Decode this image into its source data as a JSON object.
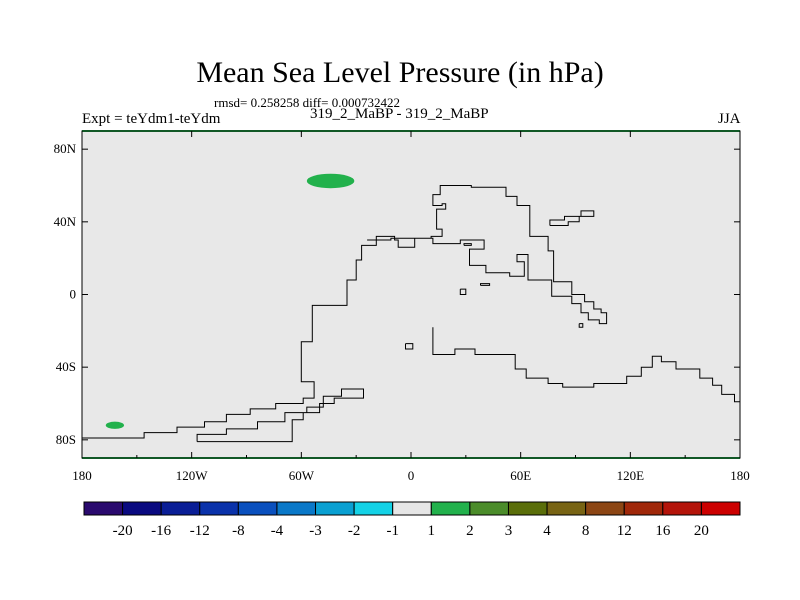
{
  "chart_data": {
    "type": "heatmap",
    "title": "Mean Sea Level Pressure (in hPa)",
    "stats_text": "rmsd= 0.258258 diff= 0.000732422",
    "left_label": "Expt = teYdm1-teYdm",
    "center_label": "319_2_MaBP - 319_2_MaBP",
    "right_label": "JJA",
    "x_range": [
      -180,
      180
    ],
    "y_range": [
      -90,
      90
    ],
    "x_ticks": [
      {
        "value": -180,
        "label": "180"
      },
      {
        "value": -120,
        "label": "120W"
      },
      {
        "value": -60,
        "label": "60W"
      },
      {
        "value": 0,
        "label": "0"
      },
      {
        "value": 60,
        "label": "60E"
      },
      {
        "value": 120,
        "label": "120E"
      },
      {
        "value": 180,
        "label": "180"
      }
    ],
    "y_ticks": [
      {
        "value": 80,
        "label": "80N"
      },
      {
        "value": 40,
        "label": "40N"
      },
      {
        "value": 0,
        "label": "0"
      },
      {
        "value": -40,
        "label": "40S"
      },
      {
        "value": -80,
        "label": "80S"
      }
    ],
    "background_color": "#e8e8e8",
    "anomalies": [
      {
        "name": "north-atlantic-positive",
        "lon": -44,
        "lat": 62.5,
        "lon_half_width": 13,
        "lat_half_height": 4,
        "value_bin": "1 to 2",
        "color": "#22b14c"
      },
      {
        "name": "south-pacific-positive",
        "lon": -162,
        "lat": -72,
        "lon_half_width": 5,
        "lat_half_height": 2,
        "value_bin": "1 to 2",
        "color": "#22b14c"
      }
    ],
    "colorbar": {
      "labels": [
        "-20",
        "-16",
        "-12",
        "-8",
        "-4",
        "-3",
        "-2",
        "-1",
        "1",
        "2",
        "3",
        "4",
        "8",
        "12",
        "16",
        "20"
      ],
      "colors": [
        "#2a0a6e",
        "#0a0a80",
        "#0a1e96",
        "#0a32aa",
        "#0a50be",
        "#0a78c8",
        "#0aa0d2",
        "#14d2e6",
        "#e6e6e6",
        "#22b14c",
        "#4b8c2a",
        "#5a6e0a",
        "#786414",
        "#8c4614",
        "#a0280a",
        "#b4140a",
        "#cc0000"
      ]
    },
    "coastlines": [
      {
        "name": "continent-outline-west",
        "points": [
          [
            -180,
            -79
          ],
          [
            -146,
            -79
          ],
          [
            -146,
            -76
          ],
          [
            -128,
            -76
          ],
          [
            -128,
            -73
          ],
          [
            -113,
            -73
          ],
          [
            -113,
            -70
          ],
          [
            -101,
            -70
          ],
          [
            -101,
            -66
          ],
          [
            -88,
            -66
          ],
          [
            -88,
            -63
          ],
          [
            -74,
            -63
          ],
          [
            -74,
            -60
          ],
          [
            -59,
            -60
          ],
          [
            -59,
            -57
          ],
          [
            -53,
            -57
          ],
          [
            -53,
            -48
          ],
          [
            -60,
            -48
          ],
          [
            -60,
            -26
          ],
          [
            -54,
            -26
          ],
          [
            -54,
            -6
          ],
          [
            -35,
            -6
          ],
          [
            -35,
            8
          ],
          [
            -30,
            8
          ],
          [
            -30,
            19
          ],
          [
            -27,
            19
          ],
          [
            -27,
            27
          ],
          [
            -19,
            27
          ],
          [
            -19,
            32
          ],
          [
            -9,
            32
          ],
          [
            -9,
            30
          ],
          [
            -7,
            30
          ],
          [
            -7,
            26
          ],
          [
            2,
            26
          ],
          [
            2,
            31
          ],
          [
            12,
            31
          ],
          [
            12,
            28
          ],
          [
            27,
            28
          ],
          [
            27,
            30
          ],
          [
            40,
            30
          ],
          [
            40,
            25
          ],
          [
            32,
            25
          ],
          [
            32,
            16
          ],
          [
            41,
            16
          ],
          [
            41,
            12
          ],
          [
            54,
            12
          ],
          [
            54,
            10
          ],
          [
            62,
            10
          ],
          [
            62,
            18
          ],
          [
            58,
            18
          ],
          [
            58,
            22
          ],
          [
            64,
            22
          ],
          [
            64,
            8
          ],
          [
            77,
            8
          ],
          [
            77,
            -1
          ],
          [
            88,
            -1
          ],
          [
            88,
            -5
          ],
          [
            93,
            -5
          ],
          [
            93,
            -10
          ],
          [
            97,
            -10
          ],
          [
            97,
            -14
          ],
          [
            103,
            -14
          ],
          [
            103,
            -16
          ],
          [
            107,
            -16
          ],
          [
            107,
            -10
          ],
          [
            104,
            -10
          ],
          [
            104,
            -8
          ],
          [
            100,
            -8
          ],
          [
            100,
            -4
          ],
          [
            95,
            -4
          ],
          [
            95,
            0
          ],
          [
            88,
            0
          ],
          [
            88,
            7
          ],
          [
            78,
            7
          ],
          [
            78,
            24
          ],
          [
            75,
            24
          ],
          [
            75,
            32
          ],
          [
            65,
            32
          ],
          [
            65,
            49
          ],
          [
            58,
            49
          ],
          [
            58,
            54
          ],
          [
            52,
            54
          ],
          [
            52,
            59
          ],
          [
            33,
            59
          ],
          [
            33,
            60
          ],
          [
            16,
            60
          ],
          [
            16,
            55
          ],
          [
            12,
            55
          ],
          [
            12,
            49
          ],
          [
            17,
            49
          ],
          [
            17,
            50
          ],
          [
            19,
            50
          ],
          [
            19,
            47
          ],
          [
            14,
            47
          ],
          [
            14,
            36
          ],
          [
            17,
            36
          ],
          [
            17,
            32
          ],
          [
            11,
            32
          ],
          [
            11,
            31
          ],
          [
            -11,
            31
          ],
          [
            -11,
            30
          ],
          [
            -24,
            30
          ]
        ]
      },
      {
        "name": "continent-outline-south",
        "points": [
          [
            12,
            -18
          ],
          [
            12,
            -33
          ],
          [
            24,
            -33
          ],
          [
            24,
            -30
          ],
          [
            35,
            -30
          ],
          [
            35,
            -33
          ],
          [
            57,
            -33
          ],
          [
            57,
            -41
          ],
          [
            63,
            -41
          ],
          [
            63,
            -46
          ],
          [
            75,
            -46
          ],
          [
            75,
            -49
          ],
          [
            83,
            -49
          ],
          [
            83,
            -51
          ],
          [
            100,
            -51
          ],
          [
            100,
            -49
          ],
          [
            118,
            -49
          ],
          [
            118,
            -45
          ],
          [
            126,
            -45
          ],
          [
            126,
            -40
          ],
          [
            132,
            -40
          ],
          [
            132,
            -34
          ],
          [
            137,
            -34
          ],
          [
            137,
            -37
          ],
          [
            145,
            -37
          ],
          [
            145,
            -41
          ],
          [
            158,
            -41
          ],
          [
            158,
            -46
          ],
          [
            165,
            -46
          ],
          [
            165,
            -50
          ],
          [
            170,
            -50
          ],
          [
            170,
            -55
          ],
          [
            177,
            -55
          ],
          [
            177,
            -59
          ],
          [
            180,
            -59
          ]
        ]
      },
      {
        "name": "peninsula-outline",
        "points": [
          [
            -117,
            -81
          ],
          [
            -117,
            -77
          ],
          [
            -101,
            -77
          ],
          [
            -101,
            -74
          ],
          [
            -84,
            -74
          ],
          [
            -84,
            -70
          ],
          [
            -69,
            -70
          ],
          [
            -69,
            -65
          ],
          [
            -57,
            -65
          ],
          [
            -57,
            -62
          ],
          [
            -48,
            -62
          ],
          [
            -48,
            -56
          ],
          [
            -38,
            -56
          ],
          [
            -38,
            -52
          ],
          [
            -26,
            -52
          ],
          [
            -26,
            -57
          ],
          [
            -42,
            -57
          ],
          [
            -42,
            -60
          ],
          [
            -50,
            -60
          ],
          [
            -50,
            -65
          ],
          [
            -59,
            -65
          ],
          [
            -59,
            -69
          ],
          [
            -65,
            -69
          ],
          [
            -65,
            -81
          ],
          [
            -117,
            -81
          ]
        ]
      },
      {
        "name": "island-outline-north",
        "points": [
          [
            76,
            38
          ],
          [
            76,
            41
          ],
          [
            84,
            41
          ],
          [
            84,
            43
          ],
          [
            93,
            43
          ],
          [
            93,
            46
          ],
          [
            100,
            46
          ],
          [
            100,
            43
          ],
          [
            92,
            43
          ],
          [
            92,
            40
          ],
          [
            86,
            40
          ],
          [
            86,
            38
          ],
          [
            76,
            38
          ]
        ]
      },
      {
        "name": "island-outline-east",
        "points": [
          [
            92,
            -16
          ],
          [
            92,
            -18
          ],
          [
            94,
            -18
          ],
          [
            94,
            -16
          ],
          [
            92,
            -16
          ]
        ]
      },
      {
        "name": "islet-outline-a",
        "points": [
          [
            29,
            27
          ],
          [
            29,
            28
          ],
          [
            33,
            28
          ],
          [
            33,
            27
          ],
          [
            29,
            27
          ]
        ]
      },
      {
        "name": "islet-outline-b",
        "points": [
          [
            27,
            3
          ],
          [
            27,
            0
          ],
          [
            30,
            0
          ],
          [
            30,
            3
          ],
          [
            27,
            3
          ]
        ]
      },
      {
        "name": "islet-outline-c",
        "points": [
          [
            38,
            5
          ],
          [
            38,
            6
          ],
          [
            43,
            6
          ],
          [
            43,
            5
          ],
          [
            38,
            5
          ]
        ]
      },
      {
        "name": "islet-outline-d",
        "points": [
          [
            -3,
            -27
          ],
          [
            -3,
            -30
          ],
          [
            1,
            -30
          ],
          [
            1,
            -27
          ],
          [
            -3,
            -27
          ]
        ]
      }
    ]
  }
}
